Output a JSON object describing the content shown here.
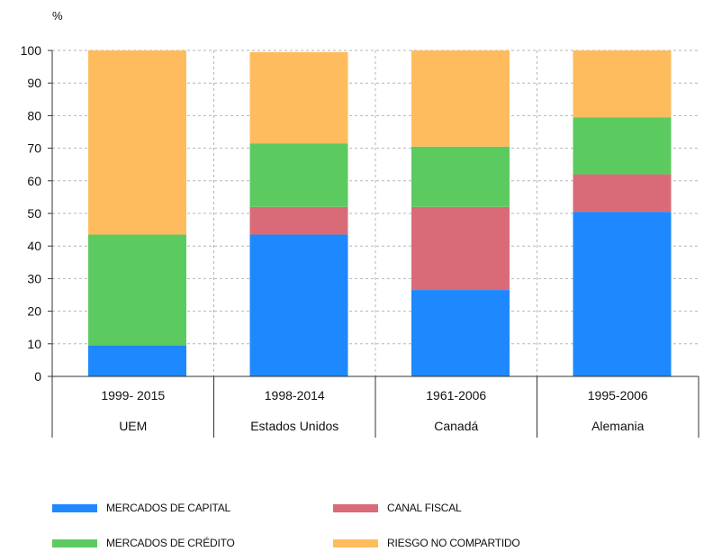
{
  "chart_data": {
    "type": "stacked-bar",
    "unit_label": "%",
    "ylim": [
      0,
      100
    ],
    "yticks": [
      0,
      10,
      20,
      30,
      40,
      50,
      60,
      70,
      80,
      90,
      100
    ],
    "grid": true,
    "categories": [
      {
        "period": "1999- 2015",
        "name": "UEM"
      },
      {
        "period": "1998-2014",
        "name": "Estados Unidos"
      },
      {
        "period": "1961-2006",
        "name": "Canadá"
      },
      {
        "period": "1995-2006",
        "name": "Alemania"
      }
    ],
    "series": [
      {
        "name": "MERCADOS DE CAPITAL",
        "color": "#1e88ff",
        "values": [
          9.5,
          43.5,
          26.5,
          50.5
        ]
      },
      {
        "name": "CANAL FISCAL",
        "color": "#d96b78",
        "values": [
          0,
          8.5,
          25.5,
          11.5
        ]
      },
      {
        "name": "MERCADOS DE CRÉDITO",
        "color": "#5ccb5f",
        "values": [
          34,
          19.5,
          18.5,
          17.5
        ]
      },
      {
        "name": "RIESGO NO COMPARTIDO",
        "color": "#ffbc5e",
        "values": [
          56.5,
          28,
          29.5,
          20.5
        ]
      }
    ],
    "legend_position": "bottom"
  }
}
